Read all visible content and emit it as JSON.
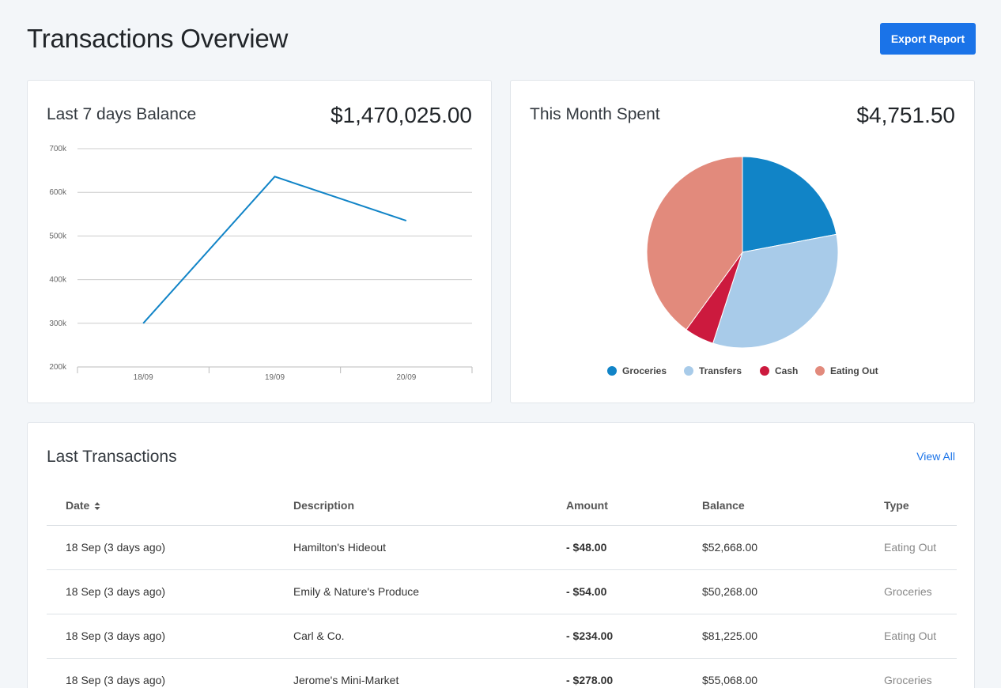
{
  "page": {
    "title": "Transactions Overview"
  },
  "toolbar": {
    "export_label": "Export Report"
  },
  "balance_card": {
    "title": "Last 7 days Balance",
    "amount": "$1,470,025.00",
    "chart_data": {
      "type": "line",
      "x": [
        "18/09",
        "19/09",
        "20/09"
      ],
      "series": [
        {
          "values": [
            300000,
            636000,
            535000
          ],
          "color": "#1184c7"
        }
      ],
      "y_ticks": [
        "200k",
        "300k",
        "400k",
        "500k",
        "600k",
        "700k"
      ],
      "ylim": [
        200000,
        700000
      ],
      "grid": true
    }
  },
  "spent_card": {
    "title": "This Month Spent",
    "amount": "$4,751.50",
    "chart_data": {
      "type": "pie",
      "categories": [
        "Groceries",
        "Transfers",
        "Cash",
        "Eating Out"
      ],
      "values": [
        22,
        33,
        5,
        40
      ],
      "colors": [
        "#1184c7",
        "#a8cbe9",
        "#cc1a3e",
        "#e28a7c"
      ],
      "legend": "bottom"
    }
  },
  "transactions_card": {
    "title": "Last Transactions",
    "view_all_label": "View All",
    "headers": {
      "date": "Date",
      "description": "Description",
      "amount": "Amount",
      "balance": "Balance",
      "type": "Type"
    },
    "rows": [
      {
        "date": "18 Sep (3 days ago)",
        "description": "Hamilton's Hideout",
        "amount": "- $48.00",
        "balance": "$52,668.00",
        "type": "Eating Out"
      },
      {
        "date": "18 Sep (3 days ago)",
        "description": "Emily & Nature's Produce",
        "amount": "- $54.00",
        "balance": "$50,268.00",
        "type": "Groceries"
      },
      {
        "date": "18 Sep (3 days ago)",
        "description": "Carl & Co.",
        "amount": "- $234.00",
        "balance": "$81,225.00",
        "type": "Eating Out"
      },
      {
        "date": "18 Sep (3 days ago)",
        "description": "Jerome's Mini-Market",
        "amount": "- $278.00",
        "balance": "$55,068.00",
        "type": "Groceries"
      }
    ]
  }
}
